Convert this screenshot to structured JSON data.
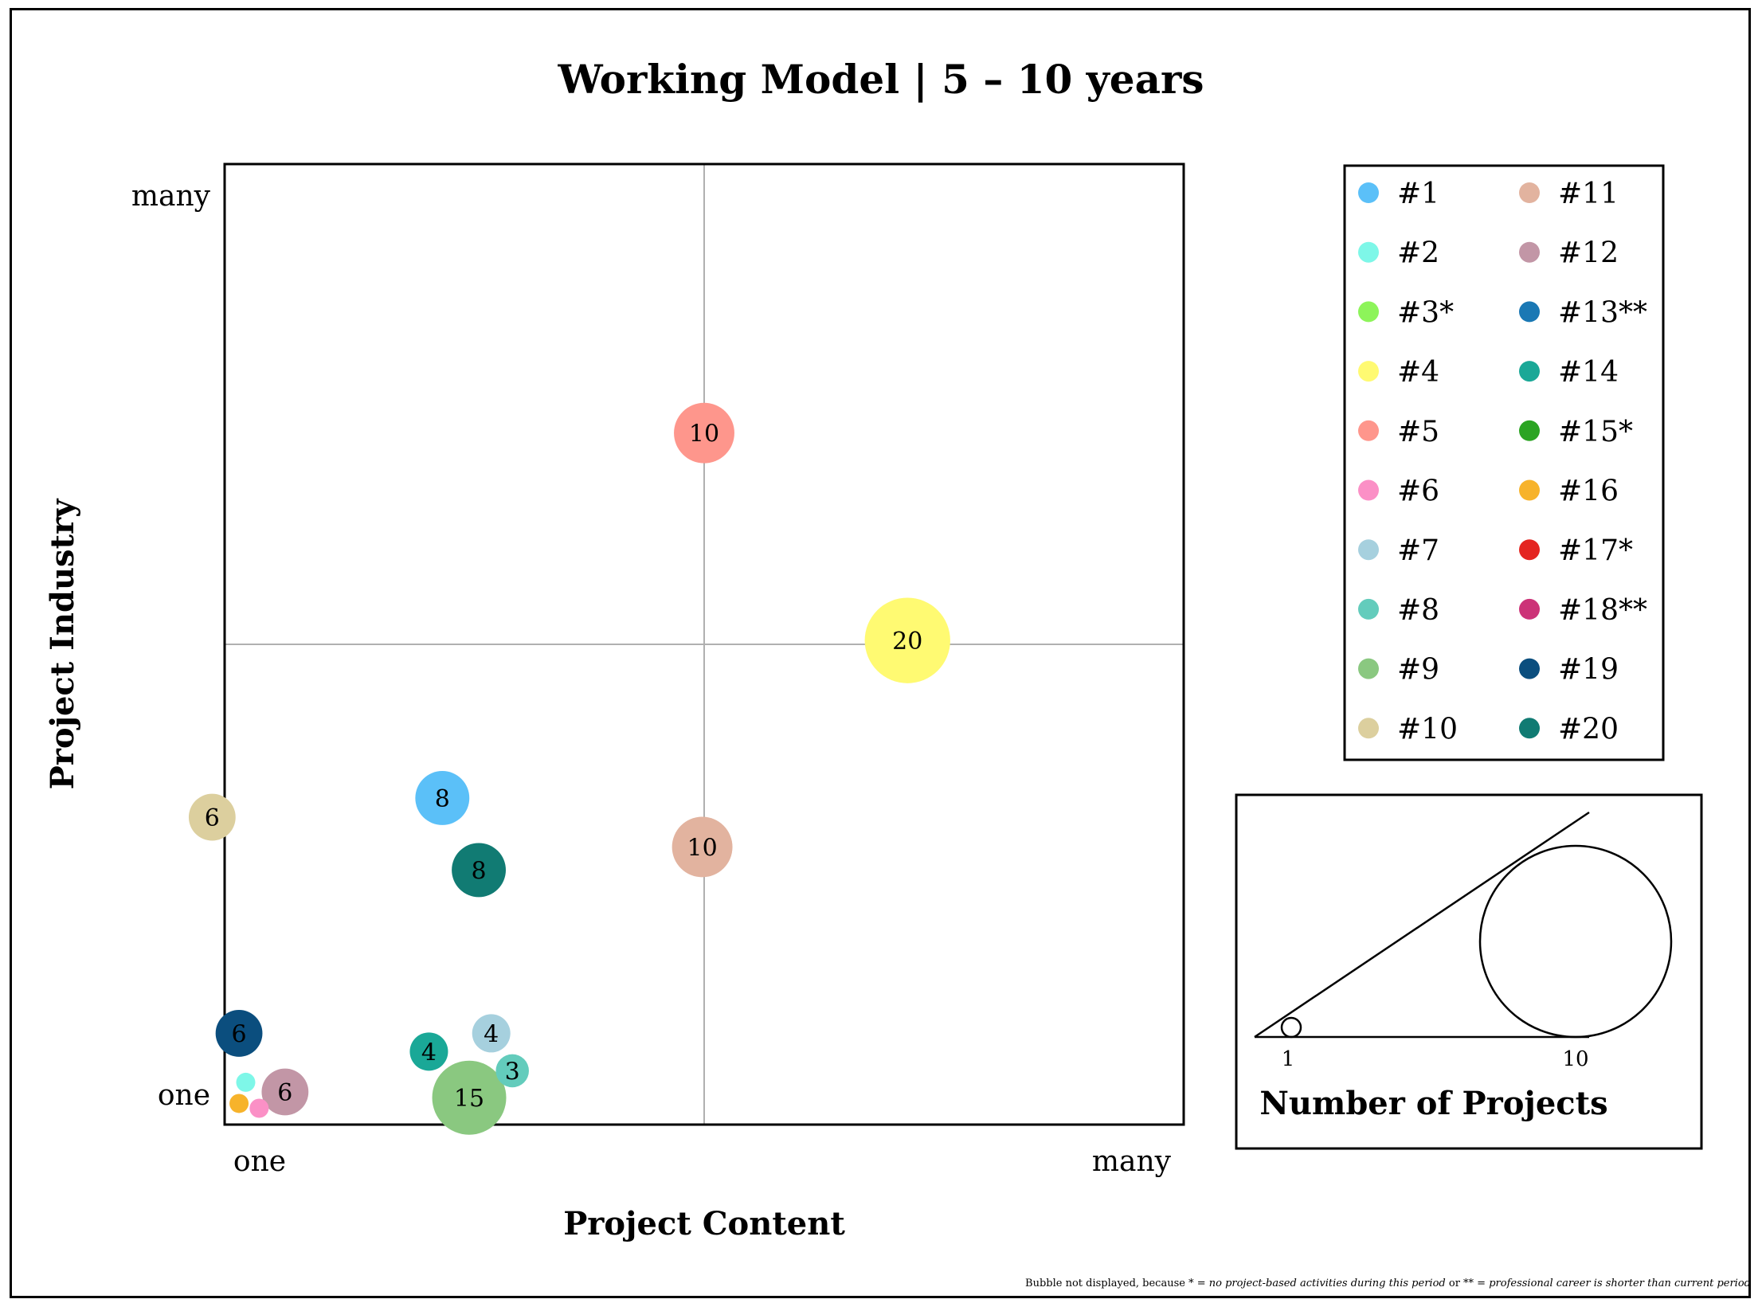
{
  "chart_data": {
    "type": "scatter",
    "subtype": "bubble",
    "title": "Working Model | 5 – 10 years",
    "xlabel": "Project Content",
    "ylabel": "Project Industry",
    "x_ticks": [
      "one",
      "many"
    ],
    "y_ticks": [
      "one",
      "many"
    ],
    "xlim": [
      0,
      10
    ],
    "ylim": [
      0,
      10
    ],
    "quadrant_lines": {
      "x": 5,
      "y": 5
    },
    "grid": false,
    "legend_position": "right",
    "colors": {
      "#1": "#5bc0f8",
      "#2": "#7ef7e8",
      "#3*": "#8df45a",
      "#4": "#fffa72",
      "#5": "#fe968c",
      "#6": "#fb90c6",
      "#7": "#a6d0de",
      "#8": "#63ccbc",
      "#9": "#8ac880",
      "#10": "#dccf9e",
      "#11": "#e2b39f",
      "#12": "#c296a6",
      "#13**": "#1a78b4",
      "#14": "#1aa897",
      "#15*": "#2ba423",
      "#16": "#f7b32b",
      "#17*": "#e42521",
      "#18**": "#cc3378",
      "#19": "#0b4e7e",
      "#20": "#117b73"
    },
    "bubbles": [
      {
        "id": "#5",
        "x": 5.0,
        "y": 7.2,
        "size": 10,
        "label": "10"
      },
      {
        "id": "#4",
        "x": 7.12,
        "y": 5.04,
        "size": 20,
        "label": "20"
      },
      {
        "id": "#11",
        "x": 4.98,
        "y": 2.89,
        "size": 10,
        "label": "10"
      },
      {
        "id": "#10",
        "x": -0.13,
        "y": 3.2,
        "size": 6,
        "label": "6"
      },
      {
        "id": "#1",
        "x": 2.27,
        "y": 3.4,
        "size": 8,
        "label": "8"
      },
      {
        "id": "#20",
        "x": 2.65,
        "y": 2.65,
        "size": 8,
        "label": "8"
      },
      {
        "id": "#9",
        "x": 2.55,
        "y": 0.28,
        "size": 15,
        "label": "15"
      },
      {
        "id": "#7",
        "x": 2.78,
        "y": 0.95,
        "size": 4,
        "label": "4"
      },
      {
        "id": "#14",
        "x": 2.13,
        "y": 0.76,
        "size": 4,
        "label": "4"
      },
      {
        "id": "#8",
        "x": 3.0,
        "y": 0.56,
        "size": 3,
        "label": "3"
      },
      {
        "id": "#12",
        "x": 0.63,
        "y": 0.34,
        "size": 6,
        "label": "6"
      },
      {
        "id": "#19",
        "x": 0.15,
        "y": 0.95,
        "size": 6,
        "label": "6"
      },
      {
        "id": "#2",
        "x": 0.22,
        "y": 0.44,
        "size": 1,
        "label": ""
      },
      {
        "id": "#16",
        "x": 0.15,
        "y": 0.22,
        "size": 1,
        "label": ""
      },
      {
        "id": "#6",
        "x": 0.36,
        "y": 0.17,
        "size": 1,
        "label": ""
      }
    ],
    "legend": [
      "#1",
      "#2",
      "#3*",
      "#4",
      "#5",
      "#6",
      "#7",
      "#8",
      "#9",
      "#10",
      "#11",
      "#12",
      "#13**",
      "#14",
      "#15*",
      "#16",
      "#17*",
      "#18**",
      "#19",
      "#20"
    ],
    "size_key": {
      "title": "Number of Projects",
      "small_label": "1",
      "large_label": "10",
      "small": 1,
      "large": 10
    },
    "footnote": {
      "prefix": "Bubble not displayed, because * = ",
      "reason1": "no project-based activities during this period",
      "middle": " or ** = ",
      "reason2": "professional career is shorter than current period"
    }
  }
}
